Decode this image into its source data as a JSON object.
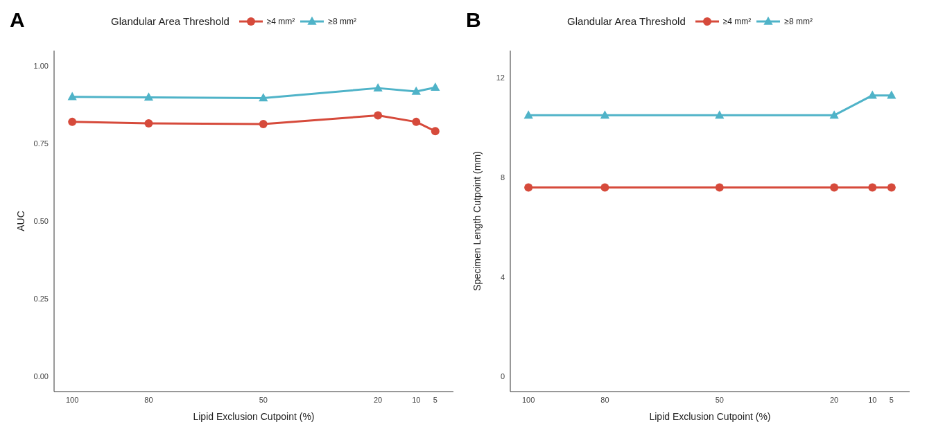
{
  "chart_data": [
    {
      "type": "line",
      "title": "A",
      "legend_title": "Glandular Area Threshold",
      "legend": "top",
      "xlabel": "Lipid Exclusion Cutpoint (%)",
      "ylabel": "AUC",
      "x": [
        100,
        80,
        50,
        20,
        10,
        5
      ],
      "xlim": [
        104.75,
        0.25
      ],
      "xticks": [
        100,
        80,
        50,
        20,
        10,
        5
      ],
      "ylim": [
        -0.05,
        1.05
      ],
      "yticks": [
        {
          "value": 0,
          "label": "0.00"
        },
        {
          "value": 0.25,
          "label": "0.25"
        },
        {
          "value": 0.5,
          "label": "0.50"
        },
        {
          "value": 0.75,
          "label": "0.75"
        },
        {
          "value": 1,
          "label": "1.00"
        }
      ],
      "grid": false,
      "series": [
        {
          "name": "≥4 mm²",
          "color": "#d64a3b",
          "marker": "circle",
          "values": [
            0.82,
            0.815,
            0.813,
            0.841,
            0.82,
            0.79
          ]
        },
        {
          "name": "≥8 mm²",
          "color": "#4fb3c8",
          "marker": "triangle",
          "values": [
            0.901,
            0.899,
            0.897,
            0.929,
            0.918,
            0.931
          ]
        }
      ]
    },
    {
      "type": "line",
      "title": "B",
      "legend_title": "Glandular Area Threshold",
      "legend": "top",
      "xlabel": "Lipid Exclusion Cutpoint (%)",
      "ylabel": "Specimen Length Cutpoint (mm)",
      "x": [
        100,
        80,
        50,
        20,
        10,
        5
      ],
      "xlim": [
        104.75,
        0.25
      ],
      "xticks": [
        100,
        80,
        50,
        20,
        10,
        5
      ],
      "ylim": [
        -0.6,
        13.1
      ],
      "yticks": [
        0,
        4,
        8,
        12
      ],
      "grid": false,
      "series": [
        {
          "name": "≥4 mm²",
          "color": "#d64a3b",
          "marker": "circle",
          "values": [
            7.6,
            7.6,
            7.6,
            7.6,
            7.6,
            7.6
          ]
        },
        {
          "name": "≥8 mm²",
          "color": "#4fb3c8",
          "marker": "triangle",
          "values": [
            10.5,
            10.5,
            10.5,
            10.5,
            11.3,
            11.3
          ]
        }
      ]
    }
  ]
}
